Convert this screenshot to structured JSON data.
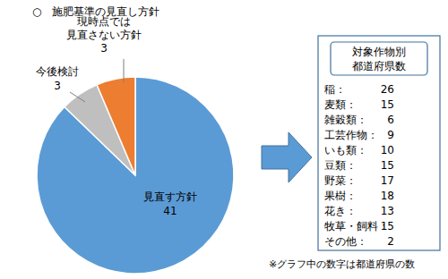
{
  "chart_data": {
    "type": "pie",
    "title": "○　施肥基準の見直し方針",
    "categories": [
      "見直す方針",
      "今後検討",
      "現時点では\n見直さない方針"
    ],
    "values": [
      41,
      3,
      3
    ],
    "colors": [
      "#5b9bd5",
      "#bfbfbf",
      "#ed7d31"
    ],
    "data_labels": true,
    "note": "※グラフ中の数字は都道府県の数"
  },
  "crop_box": {
    "title": [
      "対象作物別",
      "都道府県数"
    ],
    "rows": [
      {
        "label": "稲：",
        "value": 26
      },
      {
        "label": "麦類：",
        "value": 15
      },
      {
        "label": "雑穀類：",
        "value": 6
      },
      {
        "label": "工芸作物：",
        "value": 9
      },
      {
        "label": "いも類：",
        "value": 10
      },
      {
        "label": "豆類：",
        "value": 15
      },
      {
        "label": "野菜：",
        "value": 17
      },
      {
        "label": "果樹：",
        "value": 18
      },
      {
        "label": "花き：",
        "value": 13
      },
      {
        "label": "牧草・飼料：",
        "value": 15
      },
      {
        "label": "その他：",
        "value": 2
      }
    ]
  }
}
